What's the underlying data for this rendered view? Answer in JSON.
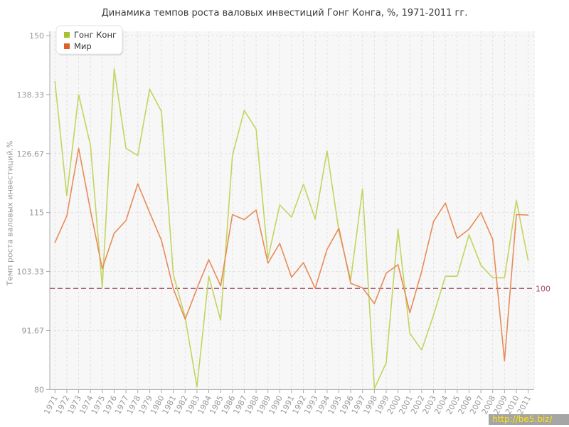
{
  "title": "Динамика темпов роста валовых инвестиций Гонг Конга, %, 1971-2011 гг.",
  "watermark": {
    "text": "http://be5.biz/",
    "bg": "#a5a5a5",
    "color": "#ffe600"
  },
  "legend": {
    "items": [
      {
        "label": "Гонг Конг",
        "swatch_color": "#a4c233"
      },
      {
        "label": "Мир",
        "swatch_color": "#df5f2b"
      }
    ]
  },
  "ref_line": {
    "value": 100,
    "label": "100",
    "color": "#a04a5e"
  },
  "styles": {
    "plot_bg": "#f7f7f7",
    "grid_color": "#e2e2e2",
    "axis_color": "#a8a8a8",
    "tick_text_color": "#999999",
    "title_color": "#3b3b3b",
    "legend_text_color": "#333333"
  },
  "chart_data": {
    "type": "line",
    "title": "Динамика темпов роста валовых инвестиций Гонг Конга, %, 1971-2011 гг.",
    "xlabel": "",
    "ylabel": "Темп роста валовых инвестиций,%",
    "ylim": [
      80,
      150
    ],
    "yticks": [
      150,
      138.33,
      126.67,
      115,
      103.33,
      91.67,
      80
    ],
    "ytick_labels": [
      "150",
      "138.33",
      "126.67",
      "115",
      "103.33",
      "91.67",
      "80"
    ],
    "grid": true,
    "legend_position": "top-left",
    "ref_line_value": 100,
    "x": [
      1971,
      1972,
      1973,
      1974,
      1975,
      1976,
      1977,
      1978,
      1979,
      1980,
      1981,
      1982,
      1983,
      1984,
      1985,
      1986,
      1987,
      1988,
      1989,
      1990,
      1991,
      1992,
      1993,
      1994,
      1995,
      1996,
      1997,
      1998,
      1999,
      2000,
      2001,
      2002,
      2003,
      2004,
      2005,
      2006,
      2007,
      2008,
      2009,
      2010,
      2011
    ],
    "xtick_labels": [
      "1971",
      "1972",
      "1973",
      "1974",
      "1975",
      "1976",
      "1977",
      "1978",
      "1979",
      "1980",
      "1981",
      "1982",
      "1983",
      "1984",
      "1985",
      "1986",
      "1987",
      "1988",
      "1989",
      "1990",
      "1991",
      "1992",
      "1993",
      "1994",
      "1995",
      "1996",
      "1997",
      "1998",
      "1999",
      "2000",
      "2001",
      "2002",
      "2003",
      "2004",
      "2005",
      "2006",
      "2007",
      "2008",
      "2009",
      "2010",
      "2011"
    ],
    "series": [
      {
        "name": "Гонг Конг",
        "line_color": "#c3d45f",
        "swatch_color": "#a4c233",
        "values": [
          140.9,
          118.3,
          138.3,
          128.3,
          100.2,
          143.4,
          127.7,
          126.3,
          139.4,
          135.0,
          102.8,
          94.3,
          80.5,
          102.4,
          93.7,
          126.3,
          135.2,
          131.5,
          105.9,
          116.5,
          114.1,
          120.6,
          113.7,
          127.2,
          111.3,
          101.7,
          119.7,
          80.2,
          85.3,
          111.7,
          91.1,
          87.8,
          94.7,
          102.4,
          102.4,
          110.6,
          104.6,
          102.1,
          102.1,
          117.4,
          105.5
        ]
      },
      {
        "name": "Мир",
        "line_color": "#e88b58",
        "swatch_color": "#df5f2b",
        "values": [
          109.1,
          114.3,
          127.7,
          115.4,
          103.9,
          110.9,
          113.4,
          120.7,
          115.0,
          109.5,
          100.0,
          93.9,
          100.0,
          105.7,
          100.5,
          114.6,
          113.6,
          115.5,
          105.0,
          108.9,
          102.2,
          105.1,
          100.0,
          107.7,
          111.9,
          101.0,
          100.1,
          97.0,
          103.0,
          104.7,
          95.2,
          103.4,
          113.2,
          116.9,
          109.9,
          111.7,
          115.0,
          109.7,
          85.7,
          114.6,
          114.5
        ]
      }
    ]
  }
}
